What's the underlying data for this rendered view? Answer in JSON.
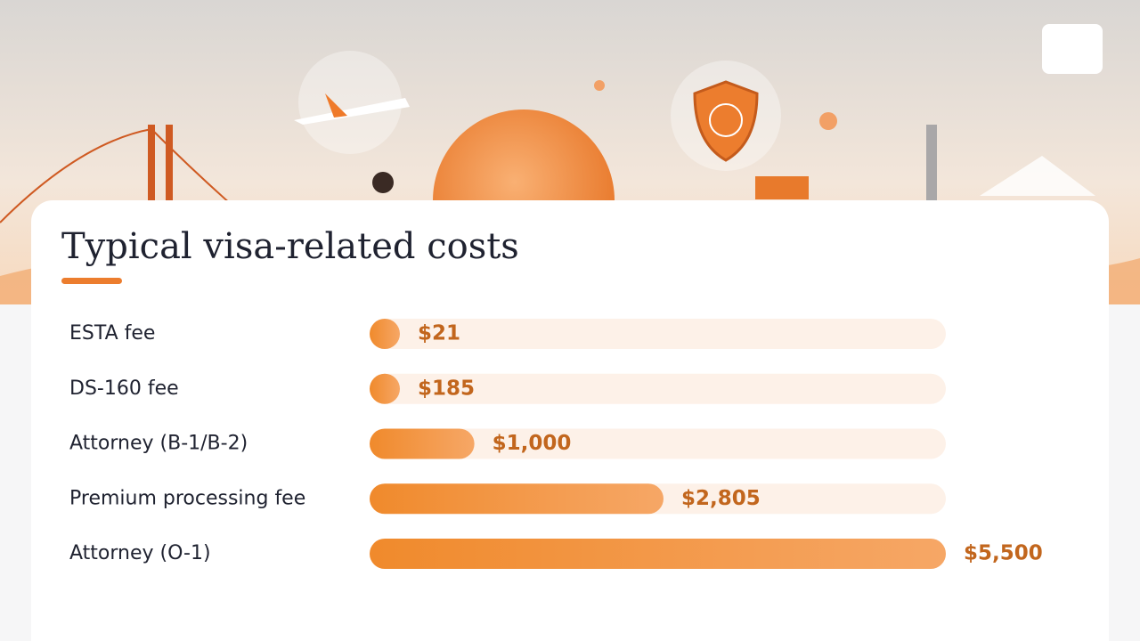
{
  "chart_data": {
    "type": "bar",
    "title": "Typical visa-related costs",
    "categories": [
      "ESTA fee",
      "DS-160 fee",
      "Attorney (B-1/B-2)",
      "Premium processing fee",
      "Attorney (O-1)"
    ],
    "values": [
      21,
      185,
      1000,
      2805,
      5500
    ],
    "value_labels": [
      "$21",
      "$185",
      "$1,000",
      "$2,805",
      "$5,500"
    ],
    "color": "#f08a2c"
  }
}
